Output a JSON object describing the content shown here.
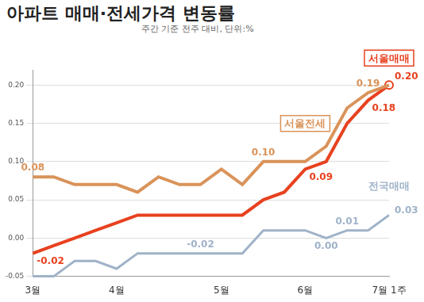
{
  "chart_data": {
    "type": "line",
    "title": "아파트 매매·전세가격 변동률",
    "subtitle": "주간 기준 전주 대비, 단위:%",
    "categories": [
      "3월",
      null,
      null,
      null,
      "4월",
      null,
      null,
      null,
      null,
      "5월",
      null,
      null,
      null,
      "6월",
      null,
      null,
      null,
      "7월 1주"
    ],
    "series": [
      {
        "name": "서울전세",
        "color": "#d9935a",
        "values": [
          0.08,
          0.08,
          0.07,
          0.07,
          0.07,
          0.06,
          0.08,
          0.07,
          0.07,
          0.09,
          0.07,
          0.1,
          0.1,
          0.1,
          0.12,
          0.17,
          0.19,
          0.2
        ],
        "value_labels": [
          "0.08",
          null,
          null,
          null,
          null,
          null,
          null,
          null,
          null,
          null,
          null,
          "0.10",
          null,
          null,
          null,
          null,
          "0.19",
          null
        ]
      },
      {
        "name": "서울매매",
        "color": "#e8411f",
        "values": [
          -0.02,
          -0.01,
          0.0,
          0.01,
          0.02,
          0.03,
          0.03,
          0.03,
          0.03,
          0.03,
          0.03,
          0.05,
          0.06,
          0.09,
          0.1,
          0.15,
          0.18,
          0.2
        ],
        "value_labels": [
          "-0.02",
          null,
          null,
          null,
          null,
          null,
          null,
          null,
          null,
          null,
          null,
          null,
          null,
          "0.09",
          null,
          null,
          "0.18",
          "0.20"
        ]
      },
      {
        "name": "전국매매",
        "color": "#9fb2c8",
        "values": [
          -0.05,
          -0.05,
          -0.03,
          -0.03,
          -0.04,
          -0.02,
          -0.02,
          -0.02,
          -0.02,
          -0.02,
          -0.02,
          0.01,
          0.01,
          0.01,
          0.0,
          0.01,
          0.01,
          0.03
        ],
        "value_labels": [
          null,
          null,
          null,
          null,
          null,
          null,
          null,
          null,
          "-0.02",
          null,
          null,
          null,
          null,
          null,
          "0.00",
          "0.01",
          null,
          "0.03"
        ]
      }
    ],
    "ylim": [
      -0.05,
      0.22
    ],
    "yticks": [
      {
        "value": -0.05,
        "label": "-0.05"
      },
      {
        "value": 0,
        "label": "0.00"
      },
      {
        "value": 0.05,
        "label": "0.05"
      },
      {
        "value": 0.1,
        "label": "0.10"
      },
      {
        "value": 0.15,
        "label": "0.15"
      },
      {
        "value": 0.2,
        "label": "0.20"
      }
    ],
    "grid": true,
    "data_labels": true
  }
}
